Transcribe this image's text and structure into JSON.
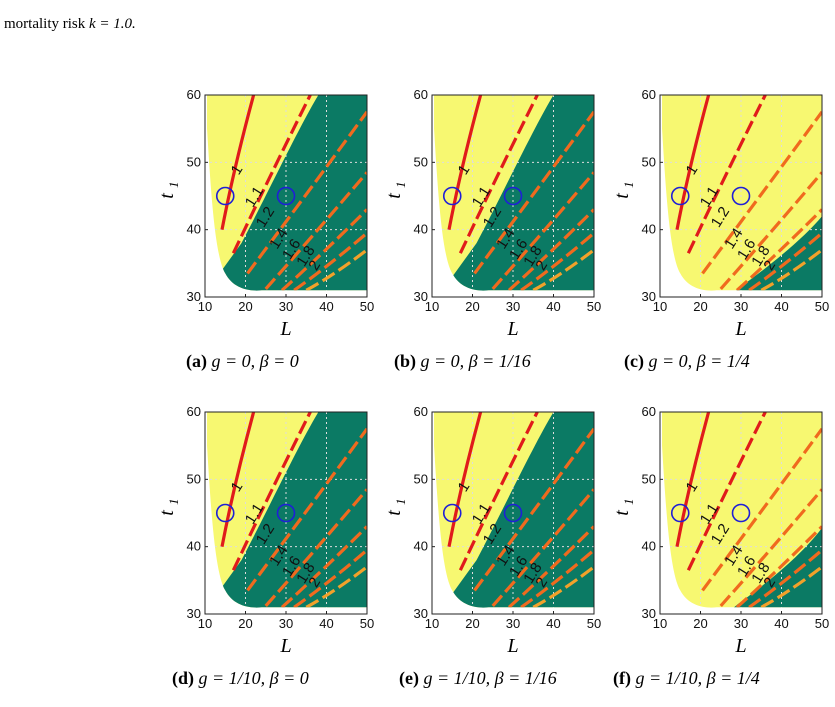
{
  "header": {
    "prefix": "mortality risk",
    "math": "k = 1.0."
  },
  "colors": {
    "feasible": "#f7f871",
    "dominant": "#0b7a64",
    "contour_main": "#e01b1b",
    "contour_alt": "#f06a1e",
    "contour_far": "#f2a12a",
    "marker": "#1f1fd6",
    "grid": "#dddddd"
  },
  "axes": {
    "x_label": "L",
    "y_label": "t",
    "y_label_sub": "1",
    "x_ticks": [
      "10",
      "20",
      "30",
      "40",
      "50"
    ],
    "y_ticks": [
      "30",
      "40",
      "50",
      "60"
    ],
    "xlim": [
      10,
      50
    ],
    "ylim": [
      30,
      60
    ]
  },
  "contour_levels": [
    "1",
    "1.1",
    "1.2",
    "1.4",
    "1.6",
    "1.8",
    "2"
  ],
  "markers": [
    {
      "L": 15,
      "t1": 45
    },
    {
      "L": 30,
      "t1": 45
    }
  ],
  "panels": [
    {
      "id": "a",
      "tag": "(a)",
      "caption": "g = 0, β = 0",
      "dominant_shift": 0,
      "labels": [
        "1",
        "1.1",
        "1.2",
        "1.4",
        "1.6",
        "1.8",
        "2"
      ]
    },
    {
      "id": "b",
      "tag": "(b)",
      "caption": "g = 0, β = 1/16",
      "dominant_shift": 2,
      "labels": [
        "1",
        "1.1",
        "1.2",
        "1.4",
        "1.6",
        "1.8",
        "2"
      ]
    },
    {
      "id": "c",
      "tag": "(c)",
      "caption": "g = 0, β = 1/4",
      "dominant_shift": 13,
      "labels": [
        "1",
        "1.1",
        "1.2",
        "1.4",
        "1.6",
        "1.8",
        "2"
      ]
    },
    {
      "id": "d",
      "tag": "(d)",
      "caption": "g = 1/10, β = 0",
      "dominant_shift": 0,
      "labels": [
        "1",
        "1.1",
        "1.2",
        "1.4",
        "1.6",
        "1.8",
        "2"
      ]
    },
    {
      "id": "e",
      "tag": "(e)",
      "caption": "g = 1/10, β = 1/16",
      "dominant_shift": 2,
      "labels": [
        "1",
        "1.1",
        "1.2",
        "1.4",
        "1.6",
        "1.8",
        "2"
      ]
    },
    {
      "id": "f",
      "tag": "(f)",
      "caption": "g = 1/10, β = 1/4",
      "dominant_shift": 11,
      "labels": [
        "1",
        "1.1",
        "1.2",
        "1.4",
        "1.6",
        "1.8",
        "2"
      ]
    }
  ]
}
